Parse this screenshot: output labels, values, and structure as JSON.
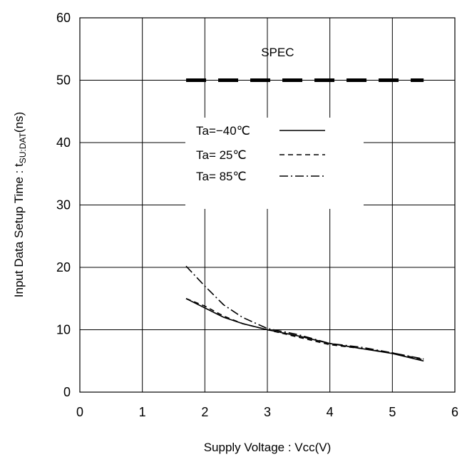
{
  "chart_data": {
    "type": "line",
    "title": "",
    "xlabel": "Supply Voltage : Vcc(V)",
    "ylabel": {
      "main": "Input Data Setup Time : t",
      "sub": "SU:DAT",
      "suffix": "(ns)"
    },
    "xlim": [
      0,
      6
    ],
    "ylim": [
      0,
      60
    ],
    "xticks": [
      0,
      1,
      2,
      3,
      4,
      5,
      6
    ],
    "yticks": [
      0,
      10,
      20,
      30,
      40,
      50,
      60
    ],
    "grid": true,
    "legend_position": "center-left",
    "annotations": [
      {
        "text": "SPEC",
        "x": 2.9,
        "y": 54.5
      }
    ],
    "spec_line": {
      "y": 50,
      "x": [
        1.7,
        5.5
      ]
    },
    "series": [
      {
        "name": "Ta=−40℃",
        "dash": "solid",
        "points": [
          [
            1.7,
            15.0
          ],
          [
            2.0,
            13.5
          ],
          [
            2.3,
            12.0
          ],
          [
            2.6,
            11.0
          ],
          [
            3.0,
            10.0
          ],
          [
            3.5,
            9.0
          ],
          [
            4.0,
            7.8
          ],
          [
            4.5,
            7.0
          ],
          [
            5.0,
            6.2
          ],
          [
            5.5,
            5.0
          ]
        ]
      },
      {
        "name": "Ta= 25℃",
        "dash": "dashed",
        "points": [
          [
            1.7,
            15.0
          ],
          [
            2.0,
            13.8
          ],
          [
            2.3,
            12.2
          ],
          [
            2.6,
            11.0
          ],
          [
            3.0,
            10.0
          ],
          [
            3.5,
            8.8
          ],
          [
            4.0,
            7.6
          ],
          [
            4.5,
            7.0
          ],
          [
            5.0,
            6.3
          ],
          [
            5.5,
            5.2
          ]
        ]
      },
      {
        "name": "Ta= 85℃",
        "dash": "dashdot",
        "points": [
          [
            1.7,
            20.2
          ],
          [
            2.0,
            17.0
          ],
          [
            2.3,
            14.0
          ],
          [
            2.6,
            12.0
          ],
          [
            3.0,
            10.2
          ],
          [
            3.5,
            9.2
          ],
          [
            4.0,
            7.8
          ],
          [
            4.5,
            7.2
          ],
          [
            5.0,
            6.3
          ],
          [
            5.5,
            5.3
          ]
        ]
      }
    ]
  }
}
